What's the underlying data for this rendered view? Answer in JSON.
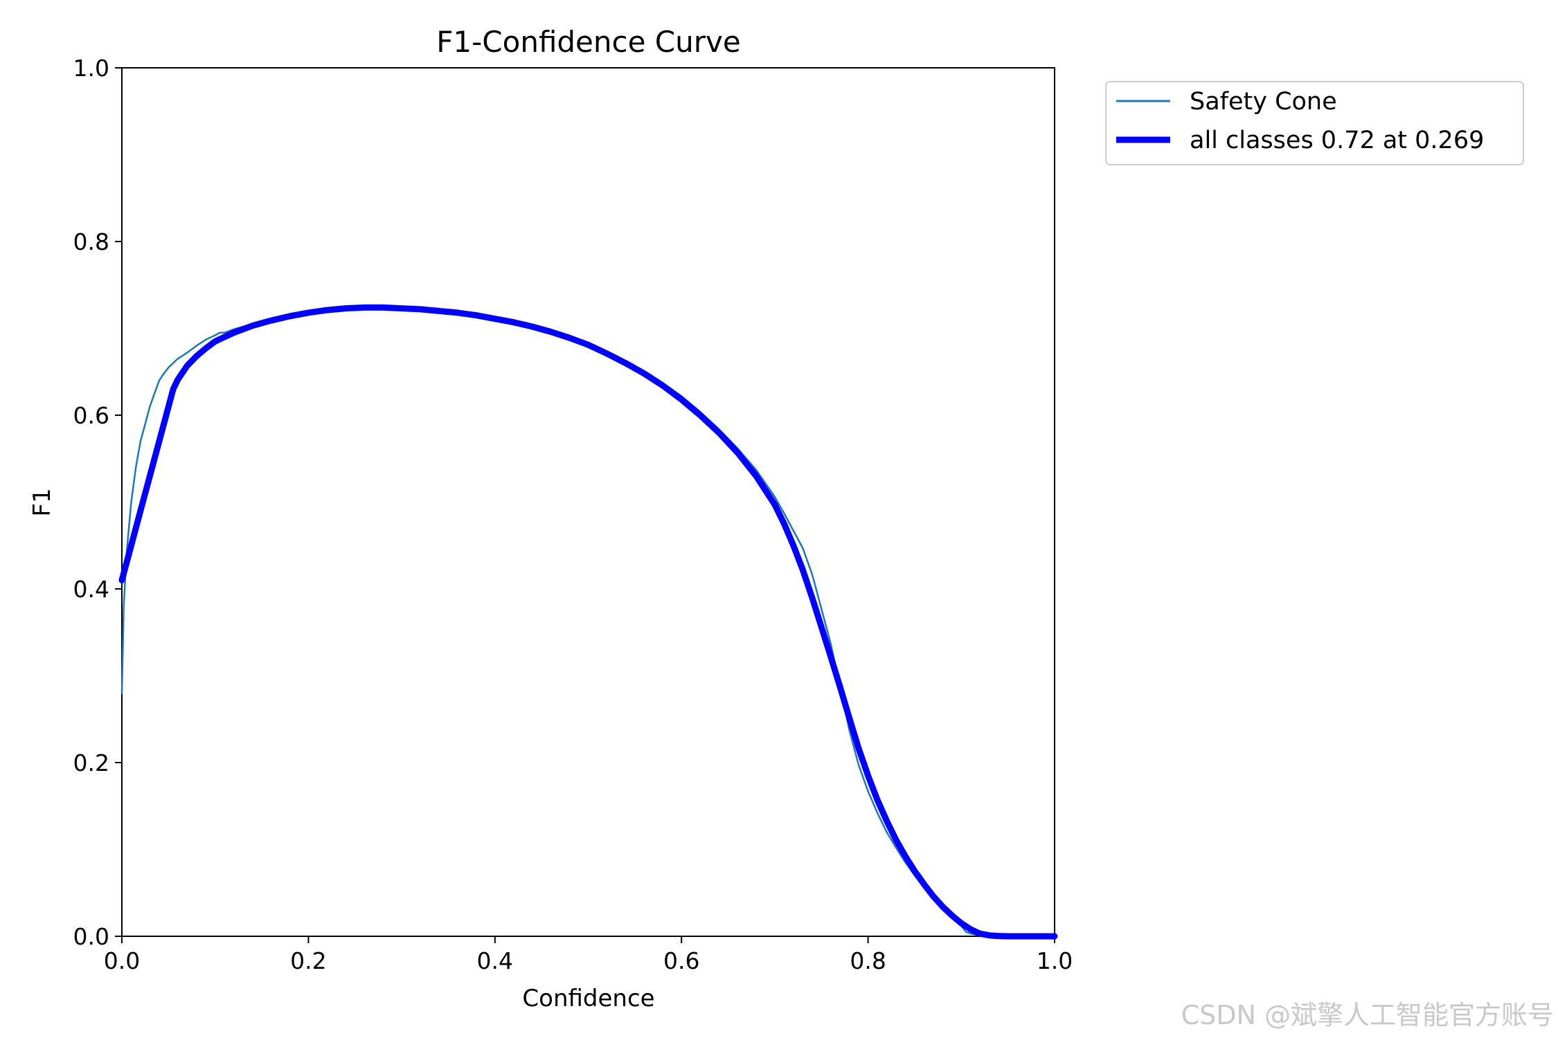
{
  "chart_data": {
    "type": "line",
    "title": "F1-Confidence Curve",
    "xlabel": "Confidence",
    "ylabel": "F1",
    "xlim": [
      0.0,
      1.0
    ],
    "ylim": [
      0.0,
      1.0
    ],
    "xticks": [
      "0.0",
      "0.2",
      "0.4",
      "0.6",
      "0.8",
      "1.0"
    ],
    "yticks": [
      "0.0",
      "0.2",
      "0.4",
      "0.6",
      "0.8",
      "1.0"
    ],
    "grid": false,
    "legend_position": "outside-top-right",
    "series": [
      {
        "name": "Safety Cone",
        "color": "#1f77b4",
        "style": "thin",
        "x": [
          0.0,
          0.002,
          0.005,
          0.01,
          0.015,
          0.02,
          0.025,
          0.03,
          0.035,
          0.04,
          0.045,
          0.05,
          0.055,
          0.06,
          0.07,
          0.08,
          0.09,
          0.1,
          0.105,
          0.11,
          0.12,
          0.14,
          0.16,
          0.18,
          0.2,
          0.22,
          0.24,
          0.26,
          0.269,
          0.28,
          0.3,
          0.32,
          0.34,
          0.36,
          0.38,
          0.4,
          0.42,
          0.44,
          0.46,
          0.48,
          0.5,
          0.52,
          0.54,
          0.56,
          0.58,
          0.6,
          0.62,
          0.64,
          0.66,
          0.68,
          0.7,
          0.71,
          0.72,
          0.73,
          0.74,
          0.75,
          0.76,
          0.77,
          0.78,
          0.79,
          0.8,
          0.81,
          0.82,
          0.83,
          0.84,
          0.85,
          0.86,
          0.87,
          0.88,
          0.89,
          0.9,
          0.905,
          0.91,
          0.915,
          0.92,
          0.93,
          0.94,
          0.95,
          0.96,
          0.98,
          1.0
        ],
        "y": [
          0.28,
          0.38,
          0.44,
          0.5,
          0.54,
          0.57,
          0.59,
          0.61,
          0.625,
          0.64,
          0.648,
          0.655,
          0.66,
          0.665,
          0.672,
          0.68,
          0.687,
          0.692,
          0.695,
          0.695,
          0.699,
          0.705,
          0.711,
          0.716,
          0.719,
          0.722,
          0.724,
          0.724,
          0.724,
          0.724,
          0.723,
          0.722,
          0.72,
          0.718,
          0.715,
          0.711,
          0.707,
          0.702,
          0.696,
          0.689,
          0.681,
          0.672,
          0.661,
          0.65,
          0.637,
          0.622,
          0.604,
          0.584,
          0.562,
          0.537,
          0.506,
          0.487,
          0.467,
          0.447,
          0.417,
          0.377,
          0.337,
          0.287,
          0.237,
          0.197,
          0.167,
          0.142,
          0.12,
          0.102,
          0.085,
          0.07,
          0.056,
          0.044,
          0.033,
          0.022,
          0.012,
          0.005,
          0.003,
          0.002,
          0.001,
          0.0,
          0.0,
          0.0,
          0.0,
          0.0,
          0.0
        ]
      },
      {
        "name": "all classes 0.72 at 0.269",
        "color": "#0000ff",
        "style": "thick",
        "x": [
          0.0,
          0.01,
          0.02,
          0.03,
          0.04,
          0.05,
          0.055,
          0.06,
          0.07,
          0.08,
          0.09,
          0.1,
          0.12,
          0.14,
          0.16,
          0.18,
          0.2,
          0.22,
          0.24,
          0.26,
          0.269,
          0.28,
          0.3,
          0.32,
          0.34,
          0.36,
          0.38,
          0.4,
          0.42,
          0.44,
          0.46,
          0.48,
          0.5,
          0.52,
          0.54,
          0.56,
          0.58,
          0.6,
          0.62,
          0.64,
          0.66,
          0.68,
          0.7,
          0.71,
          0.72,
          0.73,
          0.74,
          0.75,
          0.76,
          0.77,
          0.78,
          0.79,
          0.8,
          0.81,
          0.82,
          0.83,
          0.84,
          0.85,
          0.86,
          0.87,
          0.88,
          0.89,
          0.9,
          0.91,
          0.92,
          0.93,
          0.94,
          0.95,
          0.96,
          0.98,
          1.0
        ],
        "y": [
          0.41,
          0.45,
          0.49,
          0.53,
          0.57,
          0.61,
          0.63,
          0.641,
          0.657,
          0.668,
          0.677,
          0.685,
          0.695,
          0.703,
          0.709,
          0.714,
          0.718,
          0.721,
          0.723,
          0.724,
          0.724,
          0.724,
          0.723,
          0.722,
          0.72,
          0.718,
          0.715,
          0.711,
          0.707,
          0.702,
          0.696,
          0.689,
          0.681,
          0.671,
          0.66,
          0.648,
          0.634,
          0.618,
          0.6,
          0.58,
          0.557,
          0.53,
          0.497,
          0.475,
          0.45,
          0.422,
          0.39,
          0.356,
          0.322,
          0.287,
          0.251,
          0.216,
          0.185,
          0.157,
          0.133,
          0.111,
          0.092,
          0.075,
          0.06,
          0.046,
          0.034,
          0.024,
          0.015,
          0.008,
          0.003,
          0.001,
          0.0003,
          0.0,
          0.0,
          0.0,
          0.0
        ]
      }
    ]
  },
  "watermark": "CSDN @斌擎人工智能官方账号"
}
